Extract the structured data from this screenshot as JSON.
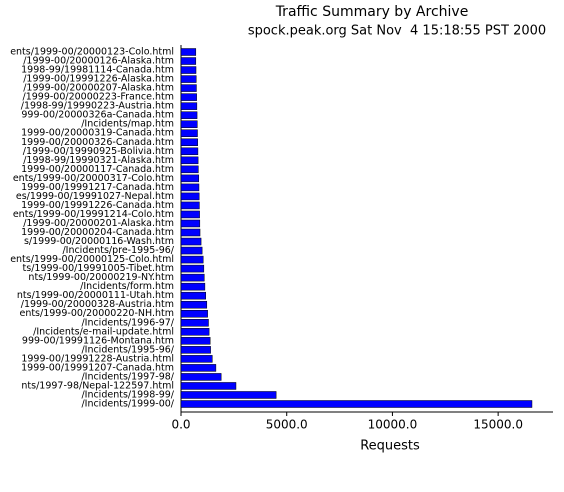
{
  "chart_data": {
    "type": "hbar",
    "title": "Traffic Summary by Archive",
    "subtitle": "spock.peak.org Sat Nov  4 15:18:55 PST 2000",
    "x_label": "Requests",
    "color": "#0000ff",
    "categories": [
      "ents/1999-00/20000123-Colo.html",
      "/1999-00/20000126-Alaska.htm",
      "1998-99/19981114-Canada.htm",
      "/1999-00/19991226-Alaska.htm",
      "/1999-00/20000207-Alaska.htm",
      "/1999-00/20000223-France.htm",
      "/1998-99/19990223-Austria.htm",
      "999-00/20000326a-Canada.htm",
      "/Incidents/map.htm",
      "1999-00/20000319-Canada.htm",
      "1999-00/20000326-Canada.htm",
      "/1999-00/19990925-Bolivia.htm",
      "/1998-99/19990321-Alaska.htm",
      "1999-00/20000117-Canada.htm",
      "ents/1999-00/20000317-Colo.htm",
      "1999-00/19991217-Canada.htm",
      "es/1999-00/19991027-Nepal.htm",
      "1999-00/19991226-Canada.htm",
      "ents/1999-00/19991214-Colo.htm",
      "/1999-00/20000201-Alaska.htm",
      "1999-00/20000204-Canada.htm",
      "s/1999-00/20000116-Wash.htm",
      "/Incidents/pre-1995-96/",
      "ents/1999-00/20000125-Colo.html",
      "ts/1999-00/19991005-Tibet.htm",
      "nts/1999-00/20000219-NY.htm",
      "/Incidents/form.htm",
      "nts/1999-00/20000111-Utah.htm",
      "/1999-00/20000328-Austria.htm",
      "ents/1999-00/20000220-NH.htm",
      "/Incidents/1996-97/",
      "/Incidents/e-mail-update.html",
      "999-00/19991126-Montana.htm",
      "/Incidents/1995-96/",
      "1999-00/19991228-Austria.html",
      "1999-00/19991207-Canada.htm",
      "/Incidents/1997-98/",
      "nts/1997-98/Nepal-122597.html",
      "/Incidents/1998-99/",
      "/Incidents/1999-00/"
    ],
    "values": [
      700,
      700,
      710,
      720,
      730,
      740,
      750,
      760,
      770,
      780,
      790,
      800,
      810,
      820,
      840,
      850,
      860,
      870,
      880,
      890,
      900,
      950,
      1000,
      1050,
      1080,
      1100,
      1130,
      1170,
      1220,
      1260,
      1300,
      1330,
      1380,
      1400,
      1480,
      1650,
      1900,
      2600,
      4500,
      16600
    ],
    "xlim": [
      0,
      17500
    ],
    "xticks": [
      {
        "value": 0,
        "label": "0.0"
      },
      {
        "value": 5000,
        "label": "5000.0"
      },
      {
        "value": 10000,
        "label": "10000.0"
      },
      {
        "value": 15000,
        "label": "15000.0"
      }
    ]
  }
}
